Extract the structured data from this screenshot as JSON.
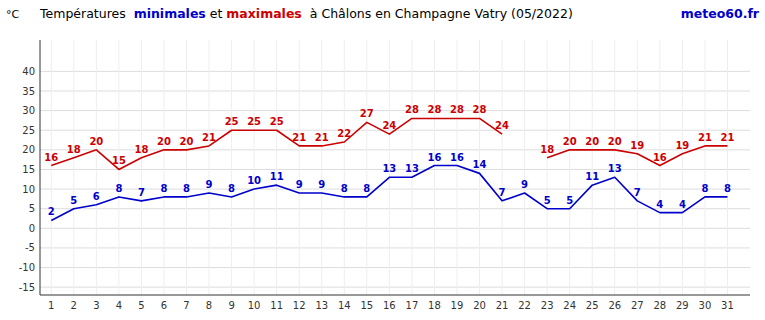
{
  "chart_data": {
    "type": "line",
    "title": "Températures  minimales et maximales  à Châlons en Champagne Vatry (05/2022)",
    "ylabel": "°C",
    "annotations": [
      {
        "text": "meteo60.fr",
        "color": "#0000cc"
      }
    ],
    "x": [
      1,
      2,
      3,
      4,
      5,
      6,
      7,
      8,
      9,
      10,
      11,
      12,
      13,
      14,
      15,
      16,
      17,
      18,
      19,
      20,
      21,
      22,
      23,
      24,
      25,
      26,
      27,
      28,
      29,
      30,
      31
    ],
    "series": [
      {
        "name": "minimales",
        "color": "#0000cc",
        "values": [
          2,
          5,
          6,
          8,
          7,
          8,
          8,
          9,
          8,
          10,
          11,
          9,
          9,
          8,
          8,
          13,
          13,
          16,
          16,
          14,
          7,
          9,
          5,
          5,
          11,
          13,
          7,
          4,
          4,
          8,
          8
        ]
      },
      {
        "name": "maximales",
        "color": "#cc0000",
        "values": [
          16,
          18,
          20,
          15,
          18,
          20,
          20,
          21,
          25,
          25,
          25,
          21,
          21,
          22,
          27,
          24,
          28,
          28,
          28,
          28,
          24,
          null,
          18,
          20,
          20,
          20,
          19,
          16,
          19,
          21,
          21
        ]
      }
    ],
    "xlim": [
      0.5,
      32.0
    ],
    "xticks": [
      1,
      2,
      3,
      4,
      5,
      6,
      7,
      8,
      9,
      10,
      11,
      12,
      13,
      14,
      15,
      16,
      17,
      18,
      19,
      20,
      21,
      22,
      23,
      24,
      25,
      26,
      27,
      28,
      29,
      30,
      31
    ],
    "ylim": [
      -17,
      48
    ],
    "yticks": [
      -15,
      -10,
      -5,
      0,
      5,
      10,
      15,
      20,
      25,
      30,
      35,
      40
    ],
    "grid": true,
    "data_labels": true
  }
}
